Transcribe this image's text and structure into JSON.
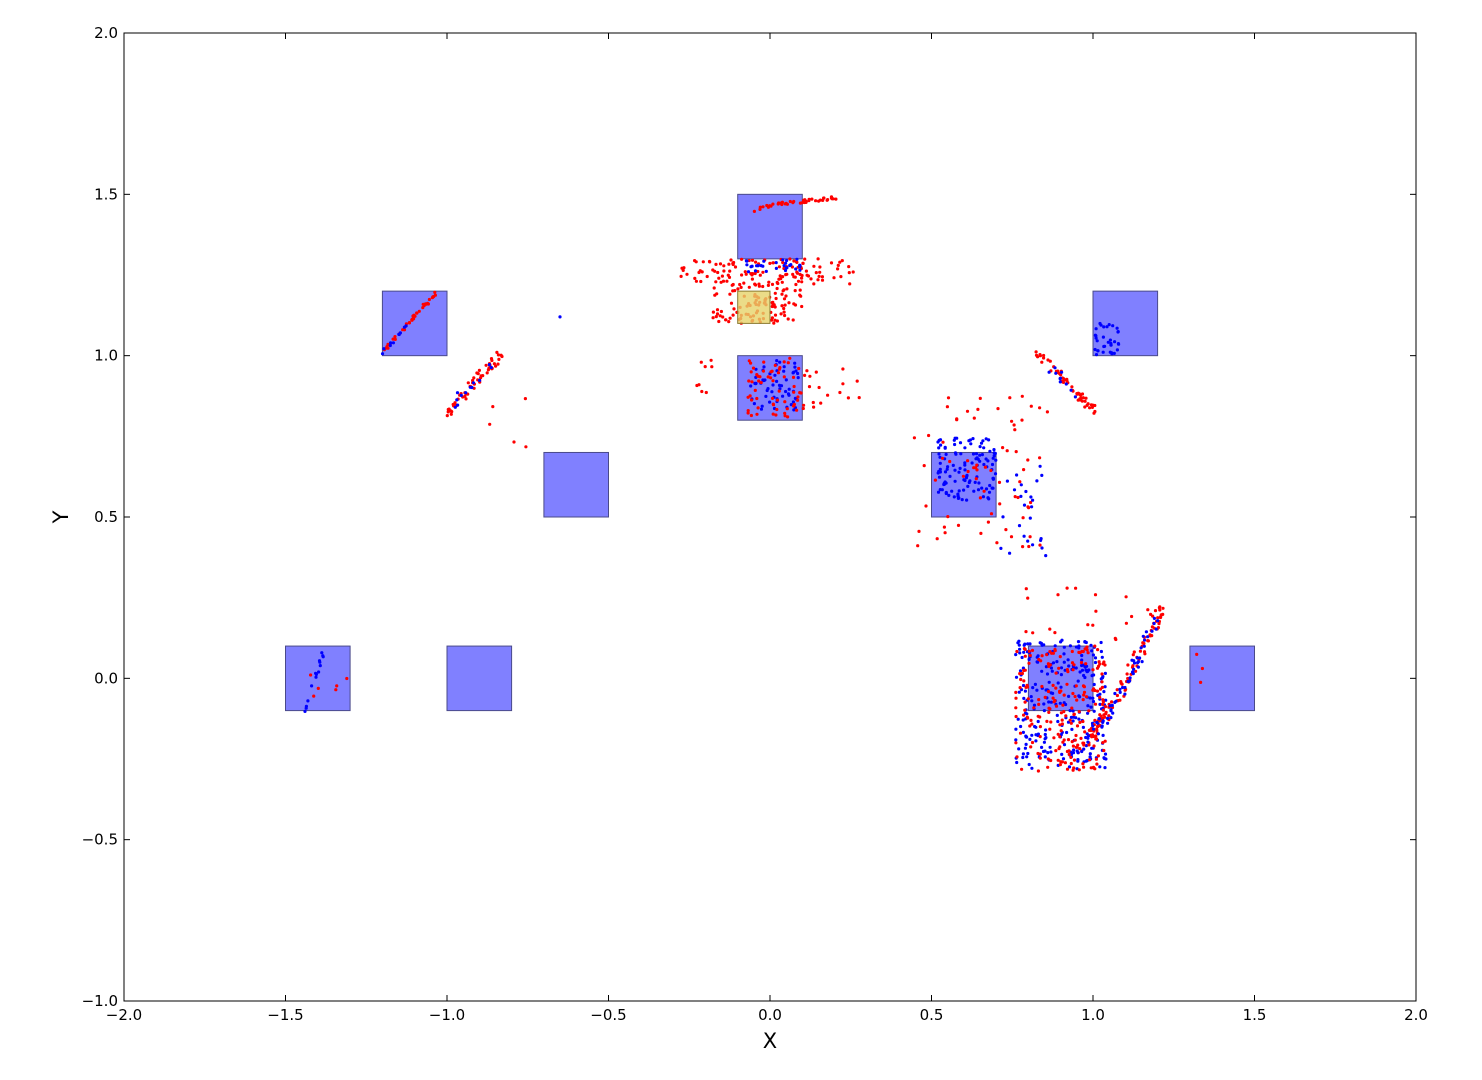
{
  "chart_data": {
    "type": "scatter",
    "title": "",
    "xlabel": "X",
    "ylabel": "Y",
    "xlim": [
      -2.0,
      2.0
    ],
    "ylim": [
      -1.0,
      2.0
    ],
    "grid": false,
    "x_ticks": [
      {
        "value": -2.0,
        "label": "−2.0"
      },
      {
        "value": -1.5,
        "label": "−1.5"
      },
      {
        "value": -1.0,
        "label": "−1.0"
      },
      {
        "value": -0.5,
        "label": "−0.5"
      },
      {
        "value": 0.0,
        "label": "0.0"
      },
      {
        "value": 0.5,
        "label": "0.5"
      },
      {
        "value": 1.0,
        "label": "1.0"
      },
      {
        "value": 1.5,
        "label": "1.5"
      },
      {
        "value": 2.0,
        "label": "2.0"
      }
    ],
    "y_ticks": [
      {
        "value": -1.0,
        "label": "−1.0"
      },
      {
        "value": -0.5,
        "label": "−0.5"
      },
      {
        "value": 0.0,
        "label": "0.0"
      },
      {
        "value": 0.5,
        "label": "0.5"
      },
      {
        "value": 1.0,
        "label": "1.0"
      },
      {
        "value": 1.5,
        "label": "1.5"
      },
      {
        "value": 2.0,
        "label": "2.0"
      }
    ],
    "colors": {
      "region": "#8080ff",
      "region_edge": "#4a4a8a",
      "goal": "#e6d36a",
      "goal_edge": "#8a7a30",
      "red": "#ff0000",
      "blue": "#0000ff"
    },
    "regions": [
      {
        "x0": -0.1,
        "y0": 1.3,
        "x1": 0.1,
        "y1": 1.5
      },
      {
        "x0": -1.2,
        "y0": 1.0,
        "x1": -1.0,
        "y1": 1.2
      },
      {
        "x0": 1.0,
        "y0": 1.0,
        "x1": 1.2,
        "y1": 1.2
      },
      {
        "x0": -0.1,
        "y0": 0.8,
        "x1": 0.1,
        "y1": 1.0
      },
      {
        "x0": -0.7,
        "y0": 0.5,
        "x1": -0.5,
        "y1": 0.7
      },
      {
        "x0": 0.5,
        "y0": 0.5,
        "x1": 0.7,
        "y1": 0.7
      },
      {
        "x0": -1.5,
        "y0": -0.1,
        "x1": -1.3,
        "y1": 0.1
      },
      {
        "x0": -1.0,
        "y0": -0.1,
        "x1": -0.8,
        "y1": 0.1
      },
      {
        "x0": 0.8,
        "y0": -0.1,
        "x1": 1.0,
        "y1": 0.1
      },
      {
        "x0": 1.3,
        "y0": -0.1,
        "x1": 1.5,
        "y1": 0.1
      }
    ],
    "goal_region": {
      "x0": -0.1,
      "y0": 1.1,
      "x1": 0.0,
      "y1": 1.2
    },
    "point_clusters": [
      {
        "series": "red",
        "count": 120,
        "shape": "box",
        "x": [
          -0.28,
          0.26
        ],
        "y": [
          1.22,
          1.3
        ]
      },
      {
        "series": "red",
        "count": 90,
        "shape": "box",
        "x": [
          -0.18,
          0.1
        ],
        "y": [
          1.1,
          1.23
        ]
      },
      {
        "series": "blue",
        "count": 30,
        "shape": "box",
        "x": [
          -0.1,
          0.1
        ],
        "y": [
          1.26,
          1.3
        ]
      },
      {
        "series": "red",
        "count": 45,
        "shape": "arc",
        "x": [
          -0.05,
          0.22
        ],
        "y": [
          1.44,
          1.49
        ]
      },
      {
        "series": "red",
        "count": 25,
        "shape": "box",
        "x": [
          -0.09,
          0.02
        ],
        "y": [
          1.1,
          1.18
        ]
      },
      {
        "series": "blue",
        "count": 60,
        "shape": "box",
        "x": [
          -0.06,
          0.09
        ],
        "y": [
          0.83,
          0.99
        ]
      },
      {
        "series": "red",
        "count": 60,
        "shape": "box",
        "x": [
          -0.07,
          0.1
        ],
        "y": [
          0.81,
          1.0
        ]
      },
      {
        "series": "red",
        "count": 18,
        "shape": "box",
        "x": [
          0.1,
          0.29
        ],
        "y": [
          0.83,
          0.97
        ]
      },
      {
        "series": "red",
        "count": 8,
        "shape": "box",
        "x": [
          -0.26,
          -0.18
        ],
        "y": [
          0.88,
          0.99
        ]
      },
      {
        "series": "red",
        "count": 40,
        "shape": "line",
        "x": [
          -1.2,
          -1.03
        ],
        "y": [
          1.01,
          1.2
        ]
      },
      {
        "series": "blue",
        "count": 10,
        "shape": "line",
        "x": [
          -1.2,
          -1.12
        ],
        "y": [
          1.01,
          1.1
        ]
      },
      {
        "series": "red",
        "count": 60,
        "shape": "band",
        "x": [
          -1.0,
          -0.83
        ],
        "y": [
          0.82,
          1.01
        ]
      },
      {
        "series": "blue",
        "count": 12,
        "shape": "band",
        "x": [
          -0.98,
          -0.85
        ],
        "y": [
          0.85,
          0.98
        ]
      },
      {
        "series": "red",
        "count": 5,
        "shape": "box",
        "x": [
          -0.9,
          -0.73
        ],
        "y": [
          0.71,
          0.87
        ]
      },
      {
        "series": "blue",
        "count": 1,
        "shape": "box",
        "x": [
          -0.65,
          -0.65
        ],
        "y": [
          1.12,
          1.12
        ]
      },
      {
        "series": "blue",
        "count": 35,
        "shape": "box",
        "x": [
          1.0,
          1.08
        ],
        "y": [
          1.0,
          1.1
        ]
      },
      {
        "series": "red",
        "count": 55,
        "shape": "band",
        "x": [
          0.83,
          1.01
        ],
        "y": [
          0.82,
          1.01
        ]
      },
      {
        "series": "blue",
        "count": 10,
        "shape": "band",
        "x": [
          0.86,
          0.96
        ],
        "y": [
          0.87,
          0.97
        ]
      },
      {
        "series": "blue",
        "count": 120,
        "shape": "box",
        "x": [
          0.52,
          0.7
        ],
        "y": [
          0.55,
          0.75
        ]
      },
      {
        "series": "red",
        "count": 70,
        "shape": "box",
        "x": [
          0.44,
          0.86
        ],
        "y": [
          0.4,
          0.88
        ]
      },
      {
        "series": "blue",
        "count": 25,
        "shape": "box",
        "x": [
          0.7,
          0.86
        ],
        "y": [
          0.38,
          0.66
        ]
      },
      {
        "series": "blue",
        "count": 260,
        "shape": "box",
        "x": [
          0.76,
          1.04
        ],
        "y": [
          -0.28,
          0.12
        ]
      },
      {
        "series": "red",
        "count": 200,
        "shape": "box",
        "x": [
          0.76,
          1.04
        ],
        "y": [
          -0.29,
          0.1
        ]
      },
      {
        "series": "red",
        "count": 110,
        "shape": "curve",
        "x": [
          0.9,
          1.22
        ],
        "y": [
          -0.26,
          0.23
        ]
      },
      {
        "series": "blue",
        "count": 60,
        "shape": "curve",
        "x": [
          0.92,
          1.2
        ],
        "y": [
          -0.25,
          0.2
        ]
      },
      {
        "series": "red",
        "count": 20,
        "shape": "box",
        "x": [
          0.77,
          1.18
        ],
        "y": [
          0.12,
          0.28
        ]
      },
      {
        "series": "blue",
        "count": 15,
        "shape": "line",
        "x": [
          -1.44,
          -1.38
        ],
        "y": [
          -0.1,
          0.09
        ]
      },
      {
        "series": "red",
        "count": 6,
        "shape": "box",
        "x": [
          -1.43,
          -1.3
        ],
        "y": [
          -0.06,
          0.04
        ]
      },
      {
        "series": "red",
        "count": 3,
        "shape": "box",
        "x": [
          1.3,
          1.34
        ],
        "y": [
          -0.06,
          0.08
        ]
      }
    ]
  }
}
